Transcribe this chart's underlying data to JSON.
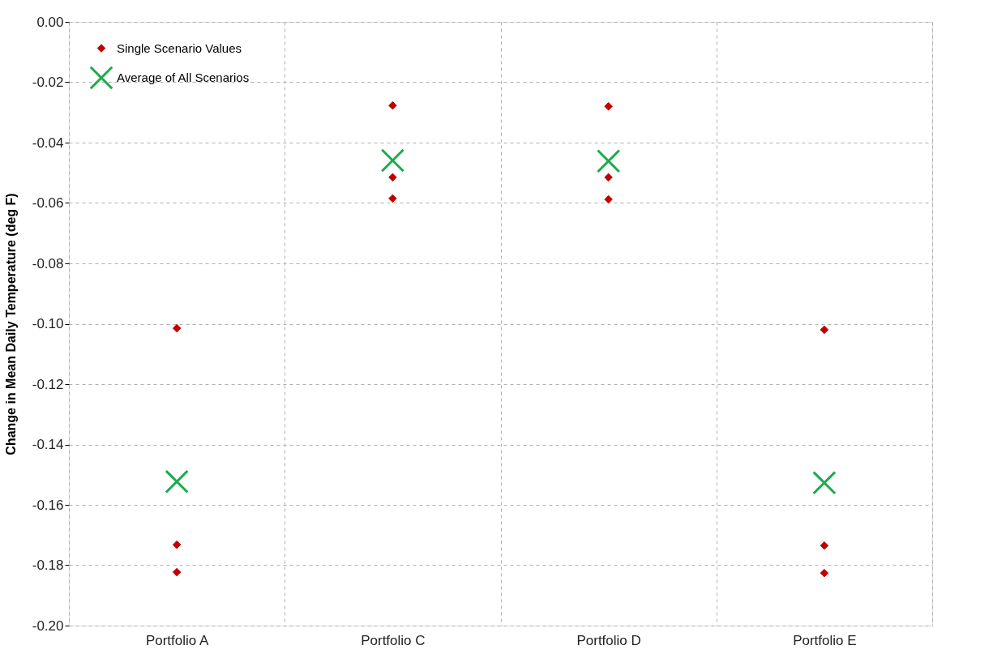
{
  "chart_data": {
    "type": "scatter",
    "ylabel": "Change in Mean Daily Temperature (deg F)",
    "categories": [
      "Portfolio A",
      "Portfolio C",
      "Portfolio D",
      "Portfolio E"
    ],
    "series": [
      {
        "name": "Single Scenario Values",
        "color": "#c00000",
        "marker": "diamond",
        "x": [
          "Portfolio A",
          "Portfolio A",
          "Portfolio A",
          "Portfolio C",
          "Portfolio C",
          "Portfolio C",
          "Portfolio D",
          "Portfolio D",
          "Portfolio D",
          "Portfolio E",
          "Portfolio E",
          "Portfolio E"
        ],
        "values": [
          -0.1015,
          -0.1732,
          -0.1823,
          -0.0277,
          -0.0515,
          -0.0585,
          -0.028,
          -0.0515,
          -0.0588,
          -0.102,
          -0.1735,
          -0.1826
        ]
      },
      {
        "name": "Average of All Scenarios",
        "color": "#1aac4a",
        "marker": "cross",
        "x": [
          "Portfolio A",
          "Portfolio C",
          "Portfolio D",
          "Portfolio E"
        ],
        "values": [
          -0.1523,
          -0.0459,
          -0.0461,
          -0.1527
        ]
      }
    ],
    "ylim": [
      -0.2,
      0
    ],
    "yticks": [
      {
        "value": 0,
        "label": "0.00"
      },
      {
        "value": -0.02,
        "label": "-0.02"
      },
      {
        "value": -0.04,
        "label": "-0.04"
      },
      {
        "value": -0.06,
        "label": "-0.06"
      },
      {
        "value": -0.08,
        "label": "-0.08"
      },
      {
        "value": -0.1,
        "label": "-0.10"
      },
      {
        "value": -0.12,
        "label": "-0.12"
      },
      {
        "value": -0.14,
        "label": "-0.14"
      },
      {
        "value": -0.16,
        "label": "-0.16"
      },
      {
        "value": -0.18,
        "label": "-0.18"
      },
      {
        "value": -0.2,
        "label": "-0.20"
      }
    ],
    "grid": true,
    "legend": "top left"
  }
}
